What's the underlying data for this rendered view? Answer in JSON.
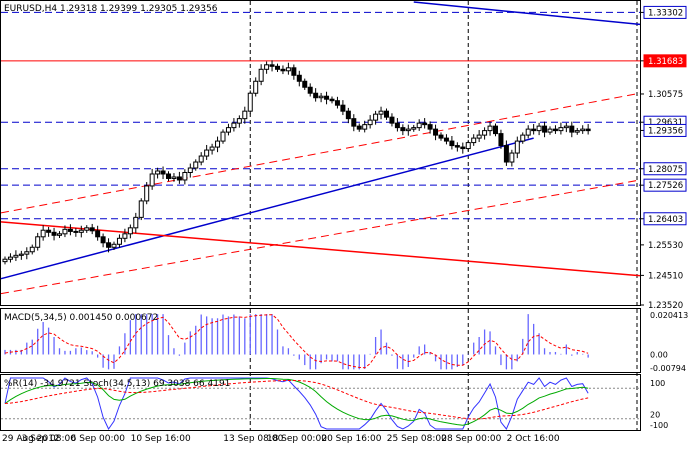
{
  "symbol_header": "EURUSD,H4  1.29318 1.29399 1.29305 1.29356",
  "macd_header": "MACD(5,34,5)  0.001450  0.000672",
  "osc_header": "%R(14) -34.9721   Stoch(34,5,13) 69.3038 66.4191",
  "colors": {
    "candle": "#000000",
    "red_line": "#ff0000",
    "blue_line": "#0000cc",
    "dashed_blue": "#0000cc",
    "price_tag": "#0000cc",
    "red_tag": "#ff0000",
    "macd_hist": "#6666ff",
    "macd_signal": "#ff0000",
    "osc_pr": "#3333ff",
    "osc_stoch": "#00aa00",
    "osc_signal": "#ff0000"
  },
  "price_axis": {
    "labels": [
      "1.33302",
      "1.31683",
      "1.30575",
      "1.29631",
      "1.29356",
      "1.28075",
      "1.27526",
      "1.26403",
      "1.25530",
      "1.24510",
      "1.23520"
    ],
    "boxed": [
      "1.33302",
      "1.31683",
      "1.29631",
      "1.29356",
      "1.28075",
      "1.27526",
      "1.26403"
    ]
  },
  "macd_axis": [
    "0.020413",
    "0.00",
    "-0.00794"
  ],
  "osc_axis": [
    "100",
    "20",
    "-100"
  ],
  "time_labels": [
    "29 Aug 2012",
    "3 Sep 08:00",
    "6 Sep 00:00",
    "10 Sep 16:00",
    "13 Sep 08:00",
    "18 Sep 00:00",
    "20 Sep 16:00",
    "25 Sep 08:00",
    "28 Sep 00:00",
    "2 Oct 16:00"
  ],
  "chart_data": {
    "type": "candlestick",
    "symbol": "EURUSD",
    "timeframe": "H4",
    "last": {
      "open": 1.29318,
      "high": 1.29399,
      "low": 1.29305,
      "close": 1.29356
    },
    "ylim": [
      1.2352,
      1.3365
    ],
    "closes": [
      1.2505,
      1.2512,
      1.2518,
      1.2522,
      1.253,
      1.2545,
      1.258,
      1.2602,
      1.2595,
      1.2585,
      1.259,
      1.2605,
      1.2598,
      1.2595,
      1.2602,
      1.261,
      1.26,
      1.258,
      1.256,
      1.2545,
      1.2555,
      1.2575,
      1.259,
      1.261,
      1.2645,
      1.27,
      1.275,
      1.279,
      1.28,
      1.279,
      1.2775,
      1.278,
      1.277,
      1.2795,
      1.281,
      1.283,
      1.285,
      1.287,
      1.288,
      1.29,
      1.293,
      1.2945,
      1.296,
      1.2975,
      1.3,
      1.306,
      1.31,
      1.314,
      1.3155,
      1.315,
      1.314,
      1.3135,
      1.3145,
      1.312,
      1.31,
      1.308,
      1.306,
      1.3045,
      1.305,
      1.304,
      1.3035,
      1.302,
      1.3,
      1.2975,
      1.295,
      1.294,
      1.2955,
      1.297,
      1.299,
      1.3,
      1.298,
      1.296,
      1.2945,
      1.2935,
      1.294,
      1.2945,
      1.296,
      1.2955,
      1.294,
      1.292,
      1.291,
      1.29,
      1.2885,
      1.288,
      1.2875,
      1.2895,
      1.291,
      1.292,
      1.2935,
      1.295,
      1.2925,
      1.2885,
      1.283,
      1.286,
      1.29,
      1.292,
      1.294,
      1.2935,
      1.295,
      1.293,
      1.294,
      1.2935,
      1.2945,
      1.295,
      1.293,
      1.2935,
      1.294,
      1.2935
    ],
    "horizontal_levels": {
      "blue_dashed": [
        1.33302,
        1.29631,
        1.28075,
        1.27526,
        1.26403
      ],
      "red_solid": [
        1.31683
      ],
      "vertical_dashed_at_labels": [
        "13 Sep 08:00",
        "28 Sep 00:00"
      ]
    },
    "trendlines": [
      {
        "color": "blue",
        "style": "solid",
        "from": [
          "start",
          1.244
        ],
        "to": [
          "2 Oct 16:00",
          1.291
        ]
      },
      {
        "color": "blue",
        "style": "solid",
        "from": [
          "25 Sep 08:00",
          1.3365
        ],
        "to": [
          "end",
          1.329
        ]
      },
      {
        "color": "red",
        "style": "solid",
        "from": [
          "start",
          1.263
        ],
        "to": [
          "end",
          1.245
        ]
      },
      {
        "color": "red",
        "style": "dashed",
        "from": [
          "start",
          1.266
        ],
        "to": [
          "end",
          1.306
        ]
      },
      {
        "color": "red",
        "style": "dashed",
        "from": [
          "start",
          1.239
        ],
        "to": [
          "end",
          1.277
        ]
      }
    ],
    "macd": {
      "params": "5,34,5",
      "main": 0.00145,
      "signal": 0.000672,
      "ylim": [
        -0.00794,
        0.020413
      ]
    },
    "percent_r": {
      "period": 14,
      "value": -34.9721
    },
    "stochastic": {
      "params": "34,5,13",
      "main": 69.3038,
      "signal": 66.4191
    }
  }
}
